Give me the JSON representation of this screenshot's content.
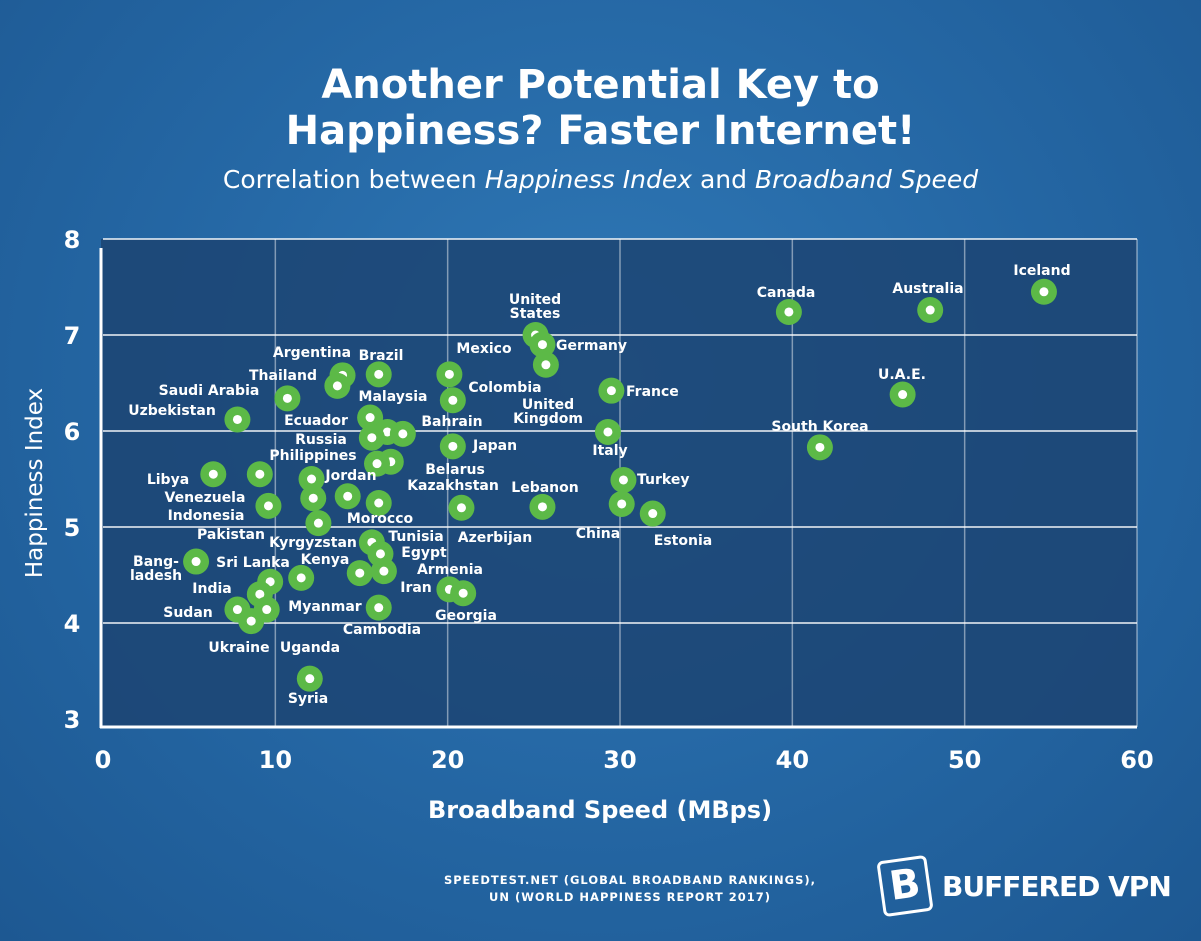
{
  "title_line1": "Another Potential Key to",
  "title_line2": "Happiness? Faster Internet!",
  "subtitle": {
    "pre": "Correlation between ",
    "em1": "Happiness Index",
    "mid": " and ",
    "em2": "Broadband Speed"
  },
  "source_line1": "SPEEDTEST.NET (GLOBAL BROADBAND RANKINGS),",
  "source_line2": "UN (WORLD HAPPINESS REPORT 2017)",
  "brand": {
    "logo_letter": "B",
    "name": "BUFFERED VPN"
  },
  "colors": {
    "background": "#2466a3",
    "plot": "#1c4472",
    "point": "#5cb947",
    "text": "#ffffff"
  },
  "chart_data": {
    "type": "scatter",
    "xlabel": "Broadband Speed (MBps)",
    "ylabel": "Happiness Index",
    "xlim": [
      0,
      60
    ],
    "ylim": [
      3,
      8
    ],
    "xticks": [
      0,
      10,
      20,
      30,
      40,
      50,
      60
    ],
    "yticks": [
      3,
      4,
      5,
      6,
      7,
      8
    ],
    "grid": true,
    "points": [
      {
        "label": "Iceland",
        "x": 54.6,
        "y": 7.45
      },
      {
        "label": "Australia",
        "x": 48.0,
        "y": 7.26
      },
      {
        "label": "Canada",
        "x": 39.8,
        "y": 7.24
      },
      {
        "label": "U.A.E.",
        "x": 46.4,
        "y": 6.38
      },
      {
        "label": "South Korea",
        "x": 41.6,
        "y": 5.83
      },
      {
        "label": "United States",
        "x": 25.1,
        "y": 7.0
      },
      {
        "label": "Germany",
        "x": 25.5,
        "y": 6.9
      },
      {
        "label": "United Kingdom",
        "x": 25.7,
        "y": 6.69
      },
      {
        "label": "France",
        "x": 29.5,
        "y": 6.42
      },
      {
        "label": "Italy",
        "x": 29.3,
        "y": 5.99
      },
      {
        "label": "Turkey",
        "x": 30.2,
        "y": 5.49
      },
      {
        "label": "China",
        "x": 30.1,
        "y": 5.24
      },
      {
        "label": "Estonia",
        "x": 31.9,
        "y": 5.14
      },
      {
        "label": "Lebanon",
        "x": 25.5,
        "y": 5.21
      },
      {
        "label": "Mexico",
        "x": 20.1,
        "y": 6.59
      },
      {
        "label": "Colombia",
        "x": 20.3,
        "y": 6.32
      },
      {
        "label": "Japan",
        "x": 20.3,
        "y": 5.84
      },
      {
        "label": "Azerbijan",
        "x": 20.8,
        "y": 5.2
      },
      {
        "label": "Armenia",
        "x": 20.1,
        "y": 4.35
      },
      {
        "label": "Georgia",
        "x": 20.9,
        "y": 4.31
      },
      {
        "label": "Argentina",
        "x": 13.9,
        "y": 6.58
      },
      {
        "label": "Brazil",
        "x": 16.0,
        "y": 6.59
      },
      {
        "label": "Thailand",
        "x": 13.6,
        "y": 6.47
      },
      {
        "label": "Saudi Arabia",
        "x": 10.7,
        "y": 6.34
      },
      {
        "label": "Uzbekistan",
        "x": 7.8,
        "y": 6.12
      },
      {
        "label": "Malaysia",
        "x": 15.5,
        "y": 6.14
      },
      {
        "label": "Ecuador",
        "x": 16.5,
        "y": 5.99
      },
      {
        "label": "Bahrain",
        "x": 17.4,
        "y": 5.97
      },
      {
        "label": "Russia",
        "x": 15.6,
        "y": 5.93
      },
      {
        "label": "Belarus",
        "x": 16.7,
        "y": 5.68
      },
      {
        "label": "Kazakhstan",
        "x": 15.9,
        "y": 5.66
      },
      {
        "label": "Philippines",
        "x": 12.1,
        "y": 5.5
      },
      {
        "label": "Jordan",
        "x": 14.2,
        "y": 5.32
      },
      {
        "label": "Libya",
        "x": 6.4,
        "y": 5.55
      },
      {
        "label": "Venezuela",
        "x": 9.1,
        "y": 5.55
      },
      {
        "label": "Indonesia",
        "x": 9.6,
        "y": 5.22
      },
      {
        "label": "Pakistan",
        "x": 12.2,
        "y": 5.3
      },
      {
        "label": "Morocco",
        "x": 16.0,
        "y": 5.25
      },
      {
        "label": "Kyrgyzstan",
        "x": 12.5,
        "y": 5.04
      },
      {
        "label": "Tunisia",
        "x": 15.6,
        "y": 4.84
      },
      {
        "label": "Egypt",
        "x": 16.1,
        "y": 4.72
      },
      {
        "label": "Kenya",
        "x": 14.9,
        "y": 4.52
      },
      {
        "label": "Iran",
        "x": 16.3,
        "y": 4.54
      },
      {
        "label": "Bangladesh",
        "x": 5.4,
        "y": 4.64
      },
      {
        "label": "Sri Lanka",
        "x": 9.7,
        "y": 4.43
      },
      {
        "label": "India",
        "x": 9.1,
        "y": 4.3
      },
      {
        "label": "Myanmar",
        "x": 11.5,
        "y": 4.47
      },
      {
        "label": "Sudan",
        "x": 7.8,
        "y": 4.14
      },
      {
        "label": "Ukraine",
        "x": 8.6,
        "y": 4.02
      },
      {
        "label": "Uganda",
        "x": 9.5,
        "y": 4.14
      },
      {
        "label": "Cambodia",
        "x": 16.0,
        "y": 4.16
      },
      {
        "label": "Syria",
        "x": 12.0,
        "y": 3.42
      }
    ]
  }
}
